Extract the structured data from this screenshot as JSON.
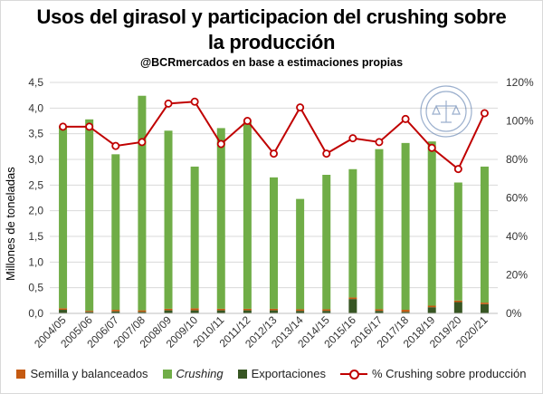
{
  "chart_data": {
    "type": "bar",
    "title_line1": "Usos del girasol y participacion del crushing sobre",
    "title_line2": "la producción",
    "subtitle": "@BCRmercados  en base a estimaciones propias",
    "ylabel": "Millones de toneladas",
    "ylim": [
      0,
      4.5
    ],
    "y2lim": [
      0,
      1.2
    ],
    "yticks": [
      "0,0",
      "0,5",
      "1,0",
      "1,5",
      "2,0",
      "2,5",
      "3,0",
      "3,5",
      "4,0",
      "4,5"
    ],
    "y2ticks": [
      "0%",
      "20%",
      "40%",
      "60%",
      "80%",
      "100%",
      "120%"
    ],
    "categories": [
      "2004/05",
      "2005/06",
      "2006/07",
      "2007/08",
      "2008/09",
      "2009/10",
      "2010/11",
      "2011/12",
      "2012/13",
      "2013/14",
      "2014/15",
      "2015/16",
      "2016/17",
      "2017/18",
      "2018/19",
      "2019/20",
      "2020/21"
    ],
    "series": [
      {
        "name": "Semilla y balanceados",
        "kind": "bar",
        "color": "#c55a11",
        "values": [
          0.03,
          0.02,
          0.03,
          0.03,
          0.03,
          0.04,
          0.03,
          0.03,
          0.03,
          0.03,
          0.03,
          0.03,
          0.03,
          0.04,
          0.03,
          0.03,
          0.03
        ]
      },
      {
        "name": "Crushing",
        "kind": "bar",
        "color": "#70ad47",
        "values": [
          3.55,
          3.73,
          3.03,
          4.18,
          3.47,
          2.76,
          3.52,
          3.65,
          2.56,
          2.15,
          2.62,
          2.5,
          3.12,
          3.25,
          3.2,
          2.3,
          2.65
        ]
      },
      {
        "name": "Exportaciones",
        "kind": "bar",
        "color": "#375623",
        "values": [
          0.07,
          0.03,
          0.04,
          0.03,
          0.06,
          0.06,
          0.06,
          0.06,
          0.06,
          0.05,
          0.05,
          0.28,
          0.05,
          0.03,
          0.12,
          0.22,
          0.18
        ]
      },
      {
        "name": "% Crushing sobre producción",
        "kind": "line",
        "axis": "right",
        "color": "#c00000",
        "values": [
          0.97,
          0.97,
          0.87,
          0.89,
          1.09,
          1.1,
          0.88,
          1.0,
          0.83,
          1.07,
          0.83,
          0.91,
          0.89,
          1.01,
          0.86,
          0.75,
          1.04
        ]
      }
    ],
    "legend_position": "bottom",
    "grid": true
  },
  "legend": {
    "semilla": "Semilla y balanceados",
    "crushing": "Crushing",
    "export": "Exportaciones",
    "pct": "% Crushing sobre producción"
  },
  "seal": {
    "text": "BOLSA DE COMERCIO DE ROSARIO"
  }
}
